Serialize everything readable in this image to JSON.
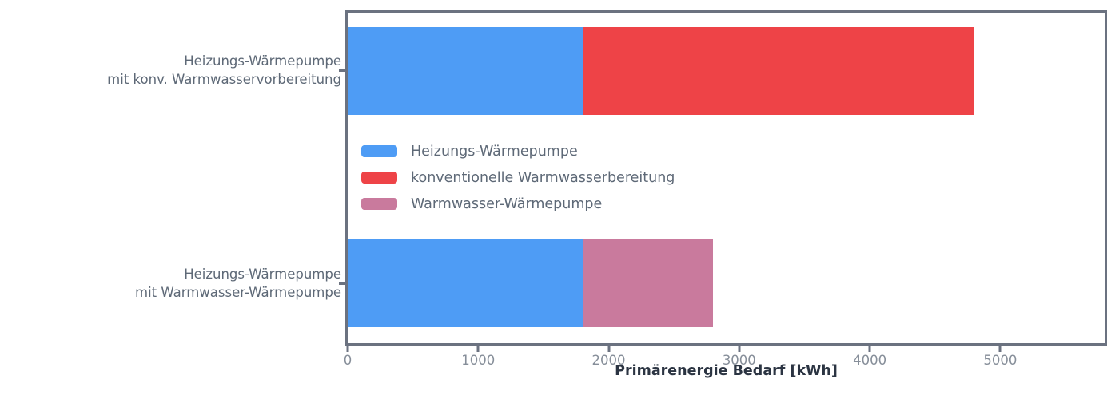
{
  "chart_data": {
    "type": "bar",
    "orientation": "horizontal",
    "stacked": true,
    "title": "",
    "xlabel": "Primärenergie Bedarf [kWh]",
    "ylabel": "",
    "xlim": [
      0,
      5800
    ],
    "xticks": [
      0,
      1000,
      2000,
      3000,
      4000,
      5000
    ],
    "grid": false,
    "legend_position": "inside-center-left",
    "categories": [
      "Heizungs-Wärmepumpe\nmit konv. Warmwasservorbereitung",
      "Heizungs-Wärmepumpe\nmit Warmwasser-Wärmepumpe"
    ],
    "series": [
      {
        "name": "Heizungs-Wärmepumpe",
        "color": "#4E9CF5",
        "values": [
          1800,
          1800
        ]
      },
      {
        "name": "konventionelle Warmwasserbereitung",
        "color": "#EE4347",
        "values": [
          3000,
          0
        ]
      },
      {
        "name": "Warmwasser-Wärmepumpe",
        "color": "#C97A9D",
        "values": [
          0,
          1000
        ]
      }
    ],
    "totals": [
      4800,
      2800
    ]
  },
  "colors": {
    "spine": "#6B7280",
    "tick_label": "#868E99",
    "category_label": "#5E6977",
    "legend_label": "#5E6977",
    "xlabel": "#2B3442",
    "background": "#ffffff"
  }
}
